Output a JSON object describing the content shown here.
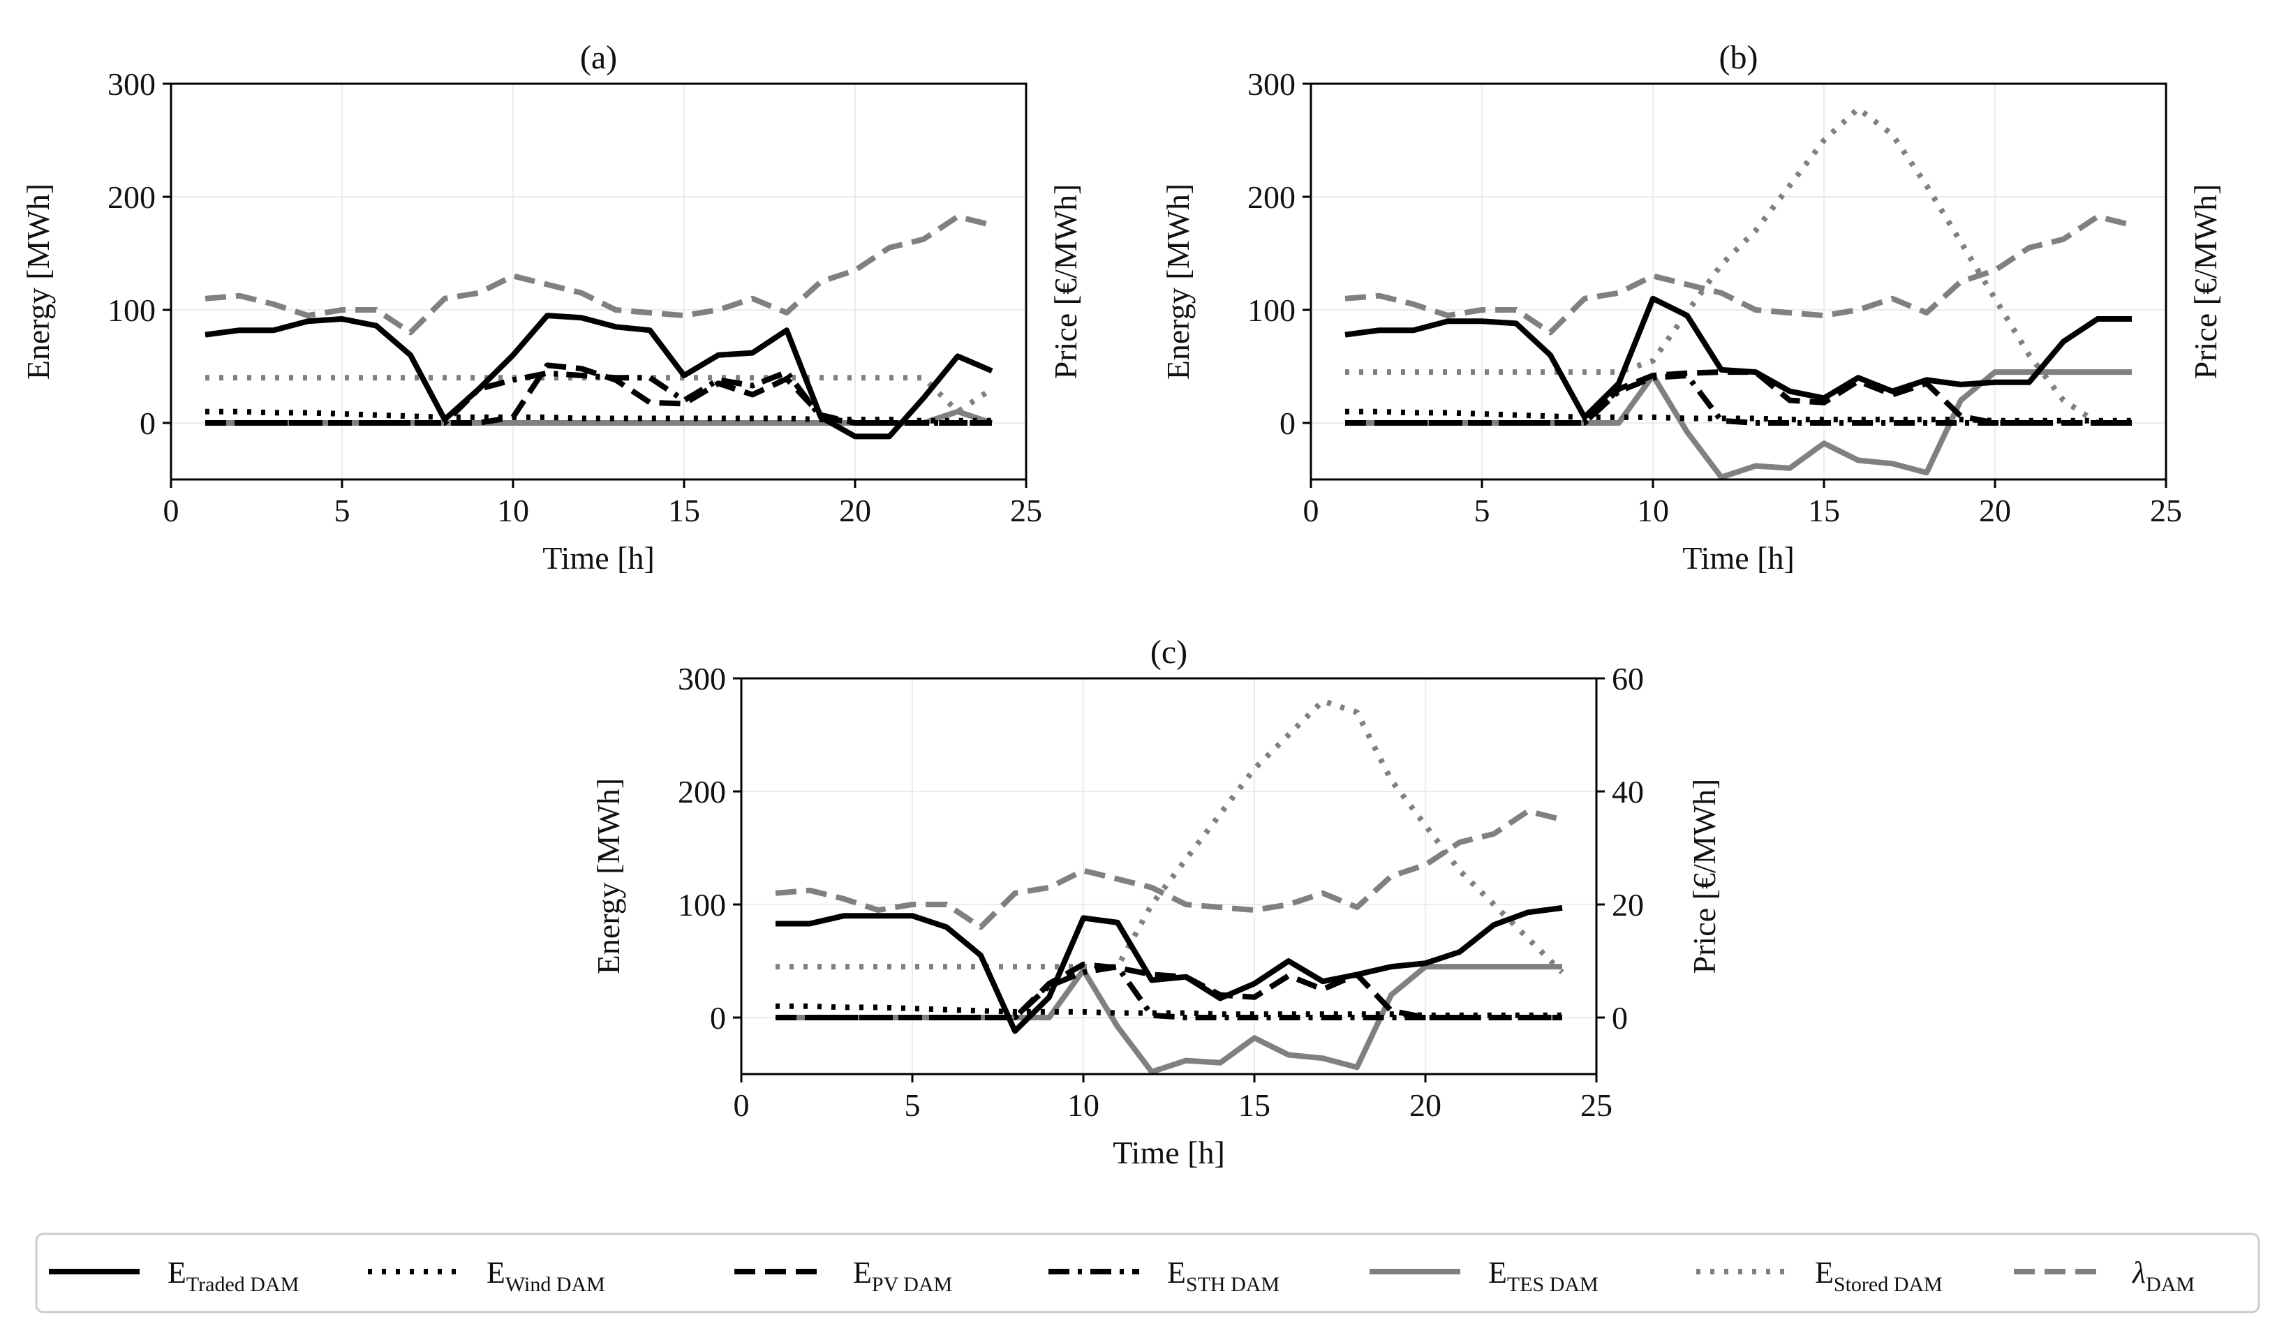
{
  "figure": {
    "legend": [
      {
        "symbol": "E",
        "sub": "Traded DAM",
        "color": "#000000",
        "dash": "solid"
      },
      {
        "symbol": "E",
        "sub": "Wind DAM",
        "color": "#000000",
        "dash": "dot"
      },
      {
        "symbol": "E",
        "sub": "PV DAM",
        "color": "#000000",
        "dash": "dash"
      },
      {
        "symbol": "E",
        "sub": "STH DAM",
        "color": "#000000",
        "dash": "dashdot"
      },
      {
        "symbol": "E",
        "sub": "TES DAM",
        "color": "#808080",
        "dash": "solid"
      },
      {
        "symbol": "E",
        "sub": "Stored DAM",
        "color": "#808080",
        "dash": "dot"
      },
      {
        "symbol": "λ",
        "sub": "DAM",
        "color": "#808080",
        "dash": "dash"
      }
    ]
  },
  "chart_data": [
    {
      "type": "line",
      "title": "(a)",
      "xlabel": "Time [h]",
      "ylabel": "Energy [MWh]",
      "y2label": "Price [€/MWh]",
      "xlim": [
        0,
        25
      ],
      "ylim": [
        -50,
        300
      ],
      "y2lim": [
        -10,
        60
      ],
      "xticks": [
        0,
        5,
        10,
        15,
        20,
        25
      ],
      "yticks": [
        0,
        100,
        200,
        300
      ],
      "y2ticks": [],
      "grid": true,
      "x": [
        1,
        2,
        3,
        4,
        5,
        6,
        7,
        8,
        9,
        10,
        11,
        12,
        13,
        14,
        15,
        16,
        17,
        18,
        19,
        20,
        21,
        22,
        23,
        24
      ],
      "series": [
        {
          "name": "E Traded DAM",
          "axis": "left",
          "values": [
            78,
            82,
            82,
            90,
            92,
            86,
            60,
            3,
            30,
            60,
            95,
            93,
            85,
            82,
            42,
            60,
            62,
            82,
            5,
            -12,
            -12,
            22,
            59,
            46
          ]
        },
        {
          "name": "E Wind DAM",
          "axis": "left",
          "values": [
            10,
            10,
            9,
            9,
            8,
            7,
            6,
            5,
            5,
            5,
            5,
            4,
            4,
            4,
            4,
            4,
            4,
            4,
            3,
            3,
            3,
            2,
            2,
            2
          ]
        },
        {
          "name": "E PV DAM",
          "axis": "left",
          "values": [
            0,
            0,
            0,
            0,
            0,
            0,
            0,
            0,
            0,
            5,
            51,
            48,
            38,
            18,
            17,
            35,
            25,
            39,
            7,
            0,
            0,
            0,
            0,
            0
          ]
        },
        {
          "name": "E STH DAM",
          "axis": "left",
          "values": [
            0,
            0,
            0,
            0,
            0,
            0,
            0,
            0,
            30,
            38,
            44,
            42,
            40,
            40,
            20,
            38,
            33,
            45,
            5,
            0,
            0,
            0,
            0,
            0
          ]
        },
        {
          "name": "E TES DAM",
          "axis": "left",
          "values": [
            0,
            0,
            0,
            0,
            0,
            0,
            0,
            0,
            0,
            0,
            0,
            0,
            0,
            0,
            0,
            0,
            0,
            0,
            0,
            0,
            0,
            0,
            10,
            0
          ]
        },
        {
          "name": "E Stored DAM",
          "axis": "left",
          "values": [
            40,
            40,
            40,
            40,
            40,
            40,
            40,
            40,
            40,
            40,
            40,
            40,
            40,
            40,
            40,
            40,
            40,
            40,
            40,
            40,
            40,
            40,
            10,
            30
          ]
        },
        {
          "name": "λ DAM",
          "axis": "right",
          "values": [
            22,
            22.5,
            21,
            19,
            20,
            20,
            16,
            22,
            23,
            26,
            24.5,
            23,
            20,
            19.5,
            19,
            20,
            22,
            19.5,
            25,
            27,
            31,
            32.5,
            36.5,
            35
          ]
        }
      ]
    },
    {
      "type": "line",
      "title": "(b)",
      "xlabel": "Time [h]",
      "ylabel": "Energy [MWh]",
      "y2label": "Price [€/MWh]",
      "xlim": [
        0,
        25
      ],
      "ylim": [
        -50,
        300
      ],
      "y2lim": [
        -10,
        60
      ],
      "xticks": [
        0,
        5,
        10,
        15,
        20,
        25
      ],
      "yticks": [
        0,
        100,
        200,
        300
      ],
      "y2ticks": [],
      "grid": true,
      "x": [
        1,
        2,
        3,
        4,
        5,
        6,
        7,
        8,
        9,
        10,
        11,
        12,
        13,
        14,
        15,
        16,
        17,
        18,
        19,
        20,
        21,
        22,
        23,
        24
      ],
      "series": [
        {
          "name": "E Traded DAM",
          "axis": "left",
          "values": [
            78,
            82,
            82,
            90,
            90,
            88,
            60,
            5,
            35,
            110,
            95,
            47,
            45,
            28,
            22,
            40,
            28,
            38,
            34,
            36,
            36,
            72,
            92,
            92
          ]
        },
        {
          "name": "E Wind DAM",
          "axis": "left",
          "values": [
            10,
            10,
            9,
            9,
            8,
            7,
            6,
            5,
            5,
            5,
            4,
            4,
            4,
            3,
            3,
            3,
            3,
            3,
            3,
            2,
            2,
            2,
            2,
            2
          ]
        },
        {
          "name": "E PV DAM",
          "axis": "left",
          "values": [
            0,
            0,
            0,
            0,
            0,
            0,
            0,
            0,
            30,
            42,
            44,
            45,
            45,
            20,
            18,
            37,
            25,
            35,
            6,
            0,
            0,
            0,
            0,
            0
          ]
        },
        {
          "name": "E STH DAM",
          "axis": "left",
          "values": [
            0,
            0,
            0,
            0,
            0,
            0,
            0,
            0,
            28,
            40,
            42,
            2,
            0,
            0,
            0,
            0,
            0,
            0,
            0,
            0,
            0,
            0,
            0,
            0
          ]
        },
        {
          "name": "E TES DAM",
          "axis": "left",
          "values": [
            0,
            0,
            0,
            0,
            0,
            0,
            0,
            0,
            0,
            42,
            -8,
            -48,
            -38,
            -40,
            -18,
            -33,
            -36,
            -44,
            20,
            45,
            45,
            45,
            45,
            45
          ]
        },
        {
          "name": "E Stored DAM",
          "axis": "left",
          "values": [
            45,
            45,
            45,
            45,
            45,
            45,
            45,
            45,
            45,
            55,
            98,
            140,
            170,
            210,
            250,
            278,
            255,
            210,
            160,
            110,
            60,
            20,
            0,
            0
          ]
        },
        {
          "name": "λ DAM",
          "axis": "right",
          "values": [
            22,
            22.5,
            21,
            19,
            20,
            20,
            16,
            22,
            23,
            26,
            24.5,
            23,
            20,
            19.5,
            19,
            20,
            22,
            19.5,
            25,
            27,
            31,
            32.5,
            36.5,
            35
          ]
        }
      ]
    },
    {
      "type": "line",
      "title": "(c)",
      "xlabel": "Time [h]",
      "ylabel": "Energy [MWh]",
      "y2label": "Price [€/MWh]",
      "xlim": [
        0,
        25
      ],
      "ylim": [
        -50,
        300
      ],
      "y2lim": [
        -10,
        60
      ],
      "xticks": [
        0,
        5,
        10,
        15,
        20,
        25
      ],
      "yticks": [
        0,
        100,
        200,
        300
      ],
      "y2ticks": [
        0,
        20,
        40,
        60
      ],
      "grid": true,
      "x": [
        1,
        2,
        3,
        4,
        5,
        6,
        7,
        8,
        9,
        10,
        11,
        12,
        13,
        14,
        15,
        16,
        17,
        18,
        19,
        20,
        21,
        22,
        23,
        24
      ],
      "series": [
        {
          "name": "E Traded DAM",
          "axis": "left",
          "values": [
            83,
            83,
            90,
            90,
            90,
            80,
            55,
            -12,
            18,
            88,
            84,
            33,
            36,
            17,
            30,
            50,
            32,
            38,
            45,
            48,
            58,
            82,
            93,
            97
          ]
        },
        {
          "name": "E Wind DAM",
          "axis": "left",
          "values": [
            10,
            10,
            9,
            9,
            8,
            7,
            6,
            5,
            5,
            5,
            4,
            4,
            4,
            3,
            3,
            3,
            3,
            3,
            3,
            2,
            2,
            2,
            2,
            2
          ]
        },
        {
          "name": "E PV DAM",
          "axis": "left",
          "values": [
            0,
            0,
            0,
            0,
            0,
            0,
            0,
            0,
            30,
            47,
            44,
            38,
            36,
            20,
            18,
            37,
            25,
            38,
            6,
            0,
            0,
            0,
            0,
            0
          ]
        },
        {
          "name": "E STH DAM",
          "axis": "left",
          "values": [
            0,
            0,
            0,
            0,
            0,
            0,
            0,
            0,
            28,
            40,
            45,
            2,
            0,
            0,
            0,
            0,
            0,
            0,
            0,
            0,
            0,
            0,
            0,
            0
          ]
        },
        {
          "name": "E TES DAM",
          "axis": "left",
          "values": [
            0,
            0,
            0,
            0,
            0,
            0,
            0,
            0,
            0,
            42,
            -8,
            -48,
            -38,
            -40,
            -18,
            -33,
            -36,
            -44,
            20,
            45,
            45,
            45,
            45,
            45
          ]
        },
        {
          "name": "E Stored DAM",
          "axis": "left",
          "values": [
            45,
            45,
            45,
            45,
            45,
            45,
            45,
            45,
            45,
            45,
            45,
            100,
            140,
            180,
            220,
            250,
            280,
            270,
            210,
            170,
            130,
            100,
            70,
            40
          ]
        },
        {
          "name": "λ DAM",
          "axis": "right",
          "values": [
            22,
            22.5,
            21,
            19,
            20,
            20,
            16,
            22,
            23,
            26,
            24.5,
            23,
            20,
            19.5,
            19,
            20,
            22,
            19.5,
            25,
            27,
            31,
            32.5,
            36.5,
            35
          ]
        }
      ]
    }
  ]
}
